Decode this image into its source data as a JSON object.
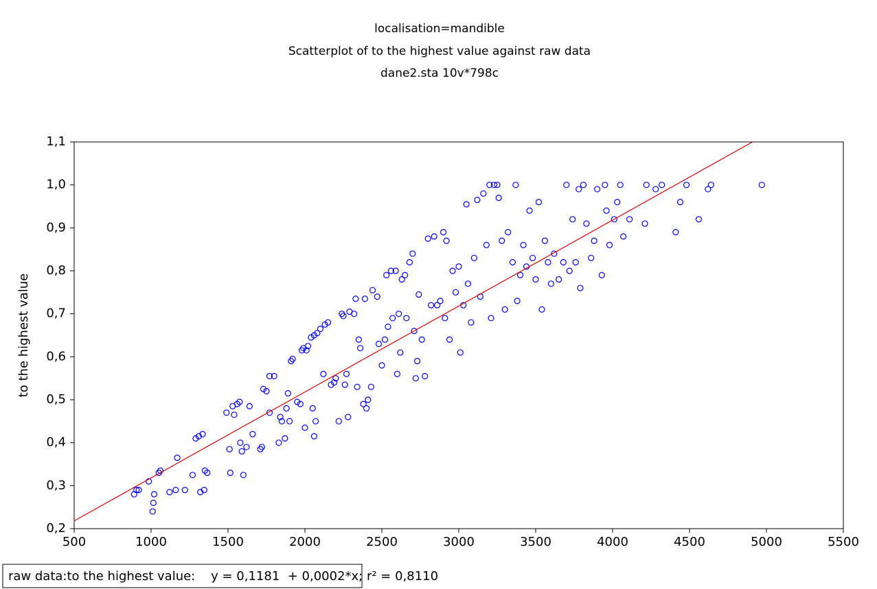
{
  "chart_data": {
    "type": "scatter",
    "title": "localisation=mandible",
    "subtitle": "Scatterplot of to the highest value against raw data",
    "caption": "dane2.sta 10v*798c",
    "y_label": "to the highest value",
    "legend_text": "raw data:to the highest value:    y = 0,1181  + 0,0002*x; r² = 0,8110",
    "regression": {
      "intercept": 0.1181,
      "slope": 0.0002,
      "r2": 0.811,
      "color": "#e00000"
    },
    "color": "#0000ff",
    "xlim": [
      500,
      5500
    ],
    "xticks": [
      500,
      1000,
      1500,
      2000,
      2500,
      3000,
      3500,
      4000,
      4500,
      5000,
      5500
    ],
    "ylim": [
      0.2,
      1.1
    ],
    "yticks": [
      {
        "value": 0.2,
        "label": "0,2"
      },
      {
        "value": 0.3,
        "label": "0,3"
      },
      {
        "value": 0.4,
        "label": "0,4"
      },
      {
        "value": 0.5,
        "label": "0,5"
      },
      {
        "value": 0.6,
        "label": "0,6"
      },
      {
        "value": 0.7,
        "label": "0,7"
      },
      {
        "value": 0.8,
        "label": "0,8"
      },
      {
        "value": 0.9,
        "label": "0,9"
      },
      {
        "value": 1.0,
        "label": "1,0"
      },
      {
        "value": 1.1,
        "label": "1,1"
      }
    ],
    "x": [
      890,
      905,
      920,
      985,
      1010,
      1015,
      1020,
      1050,
      1060,
      1120,
      1160,
      1170,
      1220,
      1270,
      1290,
      1310,
      1320,
      1335,
      1345,
      1350,
      1365,
      1490,
      1510,
      1515,
      1530,
      1540,
      1560,
      1575,
      1580,
      1590,
      1600,
      1620,
      1640,
      1660,
      1710,
      1720,
      1730,
      1750,
      1770,
      1770,
      1800,
      1830,
      1840,
      1850,
      1870,
      1880,
      1890,
      1900,
      1910,
      1920,
      1950,
      1970,
      1980,
      1990,
      2000,
      2010,
      2020,
      2050,
      2060,
      2070,
      2040,
      2060,
      2080,
      2100,
      2120,
      2130,
      2150,
      2170,
      2190,
      2200,
      2220,
      2240,
      2250,
      2260,
      2270,
      2280,
      2290,
      2320,
      2330,
      2340,
      2350,
      2360,
      2380,
      2390,
      2400,
      2410,
      2430,
      2440,
      2470,
      2480,
      2500,
      2520,
      2530,
      2540,
      2560,
      2570,
      2590,
      2600,
      2610,
      2620,
      2630,
      2650,
      2660,
      2680,
      2700,
      2710,
      2720,
      2730,
      2740,
      2760,
      2780,
      2800,
      2820,
      2840,
      2860,
      2880,
      2900,
      2910,
      2920,
      2940,
      2960,
      2980,
      3000,
      3010,
      3030,
      3050,
      3060,
      3080,
      3100,
      3120,
      3140,
      3160,
      3180,
      3200,
      3210,
      3230,
      3250,
      3260,
      3280,
      3300,
      3320,
      3350,
      3370,
      3380,
      3400,
      3420,
      3440,
      3460,
      3480,
      3500,
      3520,
      3540,
      3560,
      3580,
      3600,
      3620,
      3650,
      3680,
      3700,
      3720,
      3740,
      3760,
      3780,
      3790,
      3810,
      3830,
      3860,
      3880,
      3900,
      3930,
      3950,
      3960,
      3980,
      4010,
      4030,
      4050,
      4070,
      4110,
      4210,
      4220,
      4280,
      4320,
      4410,
      4440,
      4480,
      4560,
      4620,
      4640,
      4970
    ],
    "y": [
      0.28,
      0.29,
      0.29,
      0.31,
      0.24,
      0.26,
      0.28,
      0.33,
      0.335,
      0.285,
      0.29,
      0.365,
      0.29,
      0.325,
      0.41,
      0.415,
      0.285,
      0.42,
      0.29,
      0.335,
      0.33,
      0.47,
      0.385,
      0.33,
      0.485,
      0.465,
      0.49,
      0.495,
      0.4,
      0.38,
      0.325,
      0.39,
      0.485,
      0.42,
      0.385,
      0.39,
      0.525,
      0.52,
      0.47,
      0.555,
      0.555,
      0.4,
      0.46,
      0.45,
      0.41,
      0.48,
      0.515,
      0.45,
      0.59,
      0.595,
      0.495,
      0.49,
      0.615,
      0.62,
      0.435,
      0.615,
      0.625,
      0.48,
      0.415,
      0.45,
      0.645,
      0.65,
      0.655,
      0.665,
      0.56,
      0.675,
      0.68,
      0.535,
      0.54,
      0.55,
      0.45,
      0.7,
      0.695,
      0.535,
      0.56,
      0.46,
      0.705,
      0.7,
      0.735,
      0.53,
      0.64,
      0.62,
      0.49,
      0.735,
      0.48,
      0.5,
      0.53,
      0.755,
      0.74,
      0.63,
      0.58,
      0.64,
      0.79,
      0.67,
      0.8,
      0.69,
      0.8,
      0.56,
      0.7,
      0.61,
      0.78,
      0.79,
      0.69,
      0.82,
      0.84,
      0.66,
      0.55,
      0.59,
      0.745,
      0.64,
      0.555,
      0.875,
      0.72,
      0.88,
      0.72,
      0.73,
      0.89,
      0.69,
      0.87,
      0.64,
      0.8,
      0.75,
      0.81,
      0.61,
      0.72,
      0.955,
      0.77,
      0.68,
      0.83,
      0.965,
      0.74,
      0.98,
      0.86,
      1.0,
      0.69,
      1.0,
      1.0,
      0.97,
      0.87,
      0.71,
      0.89,
      0.82,
      1.0,
      0.73,
      0.79,
      0.86,
      0.81,
      0.94,
      0.83,
      0.78,
      0.96,
      0.71,
      0.87,
      0.82,
      0.77,
      0.84,
      0.78,
      0.82,
      1.0,
      0.8,
      0.92,
      0.82,
      0.99,
      0.76,
      1.0,
      0.91,
      0.83,
      0.87,
      0.99,
      0.79,
      1.0,
      0.94,
      0.86,
      0.92,
      0.96,
      1.0,
      0.88,
      0.92,
      0.91,
      1.0,
      0.99,
      1.0,
      0.89,
      0.96,
      1.0,
      0.92,
      0.99,
      1.0,
      1.0
    ]
  }
}
